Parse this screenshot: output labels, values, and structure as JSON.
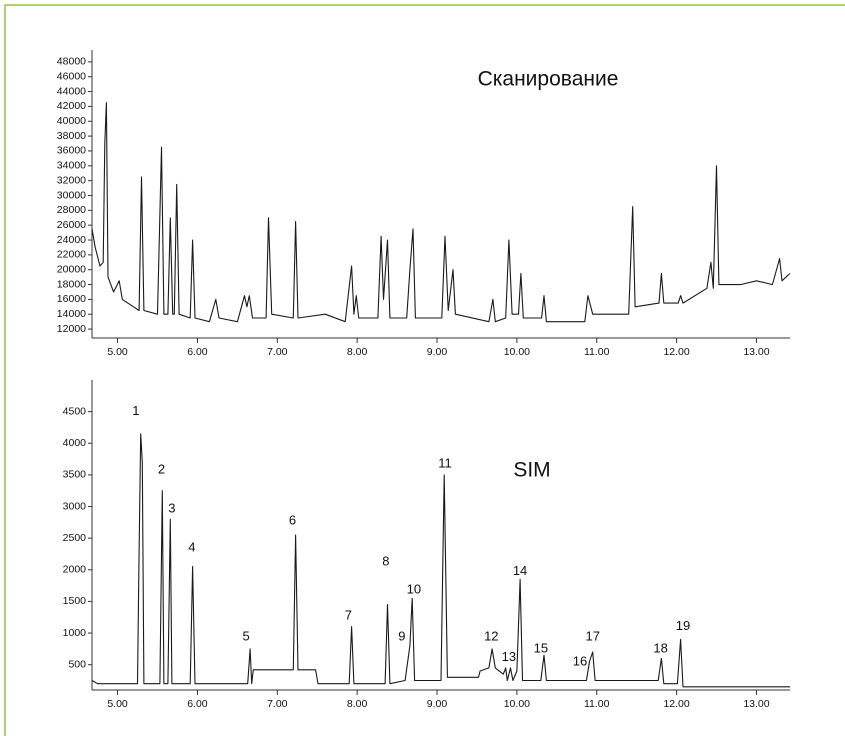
{
  "chart_data": [
    {
      "type": "line",
      "title": "Сканирование",
      "color": "#1a1a1a",
      "x": [
        4.68,
        4.72,
        4.78,
        4.82,
        4.84,
        4.86,
        4.88,
        4.95,
        5.02,
        5.06,
        5.2,
        5.27,
        5.3,
        5.33,
        5.5,
        5.55,
        5.58,
        5.63,
        5.66,
        5.69,
        5.71,
        5.74,
        5.77,
        5.91,
        5.94,
        5.97,
        6.15,
        6.23,
        6.27,
        6.5,
        6.59,
        6.62,
        6.65,
        6.69,
        6.86,
        6.89,
        6.93,
        7.2,
        7.23,
        7.26,
        7.6,
        7.85,
        7.93,
        7.96,
        7.99,
        8.02,
        8.26,
        8.3,
        8.33,
        8.38,
        8.41,
        8.62,
        8.66,
        8.7,
        8.73,
        9.06,
        9.1,
        9.14,
        9.2,
        9.23,
        9.65,
        9.7,
        9.73,
        9.86,
        9.9,
        9.94,
        10.02,
        10.05,
        10.08,
        10.31,
        10.34,
        10.37,
        10.85,
        10.89,
        10.95,
        11.4,
        11.45,
        11.48,
        11.78,
        11.81,
        11.84,
        12.02,
        12.05,
        12.08,
        12.38,
        12.43,
        12.46,
        12.5,
        12.53,
        12.8,
        13.0,
        13.2,
        13.29,
        13.32,
        13.42
      ],
      "values": [
        25500,
        23000,
        20500,
        21000,
        37000,
        42500,
        19000,
        17000,
        18500,
        16000,
        15000,
        14500,
        32500,
        14500,
        14000,
        36500,
        14000,
        14000,
        27000,
        14000,
        14000,
        31500,
        14000,
        13500,
        24000,
        13500,
        13000,
        16000,
        13500,
        13000,
        16500,
        15000,
        16500,
        13500,
        13500,
        27000,
        14000,
        13500,
        26500,
        13500,
        14000,
        13000,
        20500,
        14000,
        16500,
        13500,
        13500,
        24500,
        16000,
        24000,
        13500,
        13500,
        20000,
        25500,
        13500,
        13500,
        24500,
        14500,
        20000,
        14000,
        13000,
        16000,
        13000,
        13500,
        24000,
        14000,
        14000,
        19500,
        13500,
        13500,
        16500,
        13000,
        13000,
        16500,
        14000,
        14000,
        28500,
        15000,
        15500,
        19500,
        15500,
        15500,
        16500,
        15500,
        17500,
        21000,
        17500,
        34000,
        18000,
        18000,
        18500,
        18000,
        21500,
        18500,
        19500
      ],
      "xlim": [
        4.68,
        13.42
      ],
      "ylim": [
        10800,
        49600
      ],
      "xticks": [
        {
          "value": 5,
          "label": "5.00"
        },
        {
          "value": 6,
          "label": "6.00"
        },
        {
          "value": 7,
          "label": "7.00"
        },
        {
          "value": 8,
          "label": "8.00"
        },
        {
          "value": 9,
          "label": "9.00"
        },
        {
          "value": 10,
          "label": "10.00"
        },
        {
          "value": 11,
          "label": "11.00"
        },
        {
          "value": 12,
          "label": "12.00"
        },
        {
          "value": 13,
          "label": "13.00"
        }
      ],
      "yticks": [
        12000,
        14000,
        16000,
        18000,
        20000,
        22000,
        24000,
        26000,
        28000,
        30000,
        32000,
        34000,
        36000,
        38000,
        40000,
        42000,
        44000,
        46000,
        48000
      ]
    },
    {
      "type": "line",
      "title": "SIM",
      "color": "#1a1a1a",
      "x": [
        4.68,
        4.75,
        5.25,
        5.27,
        5.29,
        5.31,
        5.33,
        5.53,
        5.56,
        5.58,
        5.63,
        5.66,
        5.68,
        5.91,
        5.94,
        5.97,
        6.63,
        6.66,
        6.68,
        6.7,
        7.2,
        7.23,
        7.26,
        7.48,
        7.51,
        7.9,
        7.93,
        7.96,
        8.35,
        8.38,
        8.41,
        8.6,
        8.66,
        8.69,
        8.72,
        9.05,
        9.09,
        9.13,
        9.52,
        9.54,
        9.65,
        9.69,
        9.73,
        9.83,
        9.86,
        9.88,
        9.92,
        9.95,
        10.0,
        10.04,
        10.07,
        10.3,
        10.34,
        10.37,
        10.87,
        10.91,
        10.95,
        10.98,
        11.77,
        11.81,
        11.84,
        12.01,
        12.05,
        12.08,
        13.42
      ],
      "values": [
        250,
        200,
        200,
        2300,
        4150,
        3700,
        200,
        200,
        3250,
        200,
        200,
        2800,
        200,
        200,
        2050,
        200,
        200,
        750,
        200,
        420,
        420,
        2550,
        420,
        420,
        200,
        200,
        1100,
        200,
        200,
        1450,
        200,
        250,
        800,
        1550,
        250,
        250,
        3500,
        300,
        300,
        400,
        450,
        750,
        450,
        350,
        450,
        250,
        450,
        250,
        400,
        1850,
        250,
        250,
        650,
        250,
        250,
        550,
        700,
        250,
        250,
        600,
        200,
        200,
        900,
        150,
        150
      ],
      "xlim": [
        4.68,
        13.42
      ],
      "ylim": [
        100,
        5000
      ],
      "xticks": [
        {
          "value": 5,
          "label": "5.00"
        },
        {
          "value": 6,
          "label": "6.00"
        },
        {
          "value": 7,
          "label": "7.00"
        },
        {
          "value": 8,
          "label": "8.00"
        },
        {
          "value": 9,
          "label": "9.00"
        },
        {
          "value": 10,
          "label": "10.00"
        },
        {
          "value": 11,
          "label": "11.00"
        },
        {
          "value": 12,
          "label": "12.00"
        },
        {
          "value": 13,
          "label": "13.00"
        }
      ],
      "yticks": [
        500,
        1000,
        1500,
        2000,
        2500,
        3000,
        3500,
        4000,
        4500
      ],
      "annotations": [
        {
          "text": "1",
          "x": 5.23,
          "y": 4500
        },
        {
          "text": "2",
          "x": 5.55,
          "y": 3580
        },
        {
          "text": "3",
          "x": 5.68,
          "y": 2960
        },
        {
          "text": "4",
          "x": 5.93,
          "y": 2345
        },
        {
          "text": "5",
          "x": 6.61,
          "y": 940
        },
        {
          "text": "6",
          "x": 7.19,
          "y": 2770
        },
        {
          "text": "7",
          "x": 7.89,
          "y": 1270
        },
        {
          "text": "8",
          "x": 8.36,
          "y": 2120
        },
        {
          "text": "9",
          "x": 8.56,
          "y": 940
        },
        {
          "text": "10",
          "x": 8.71,
          "y": 1680
        },
        {
          "text": "11",
          "x": 9.1,
          "y": 3670
        },
        {
          "text": "12",
          "x": 9.68,
          "y": 940
        },
        {
          "text": "13",
          "x": 9.9,
          "y": 610
        },
        {
          "text": "14",
          "x": 10.04,
          "y": 1970
        },
        {
          "text": "15",
          "x": 10.3,
          "y": 750
        },
        {
          "text": "16",
          "x": 10.79,
          "y": 540
        },
        {
          "text": "17",
          "x": 10.95,
          "y": 940
        },
        {
          "text": "18",
          "x": 11.8,
          "y": 750
        },
        {
          "text": "19",
          "x": 12.08,
          "y": 1100
        }
      ]
    }
  ]
}
